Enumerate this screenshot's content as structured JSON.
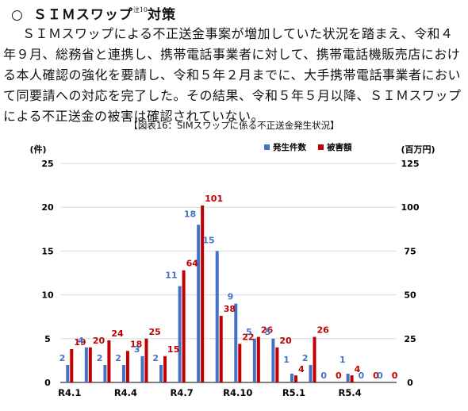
{
  "heading": {
    "marker": "○",
    "title": "ＳＩＭスワップ",
    "footnote": "注10",
    "suffix": "対策"
  },
  "body_text": "ＳＩＭスワップによる不正送金事案が増加していた状況を踏まえ、令和４年９月、総務省と連携し、携帯電話事業者に対して、携帯電話機販売店における本人確認の強化を要請し、令和５年２月までに、大手携帯電話事業者において同要請への対応を完了した。その結果、令和５年５月以降、ＳＩＭスワップによる不正送金の被害は確認されていない。",
  "figure_caption": "【図表16：SIMスワップに係る不正送金発生状況】",
  "colors": {
    "cases": "#4472c4",
    "damage": "#c00000",
    "axis": "#000000",
    "grid": "#d9d9d9"
  },
  "chart_data": {
    "type": "bar",
    "categories": [
      "R4.1",
      "R4.2",
      "R4.3",
      "R4.4",
      "R4.5",
      "R4.6",
      "R4.7",
      "R4.8",
      "R4.9",
      "R4.10",
      "R4.11",
      "R4.12",
      "R5.1",
      "R5.2",
      "R5.3",
      "R5.4",
      "R5.5",
      "R5.6"
    ],
    "category_tick_labels": [
      "R4.1",
      "",
      "",
      "R4.4",
      "",
      "",
      "R4.7",
      "",
      "",
      "R4.10",
      "",
      "",
      "R5.1",
      "",
      "",
      "R5.4",
      "",
      ""
    ],
    "series": [
      {
        "name": "発生件数",
        "axis": "left",
        "values": [
          2,
          4,
          2,
          2,
          3,
          2,
          11,
          18,
          15,
          9,
          5,
          5,
          1,
          2,
          0,
          1,
          0,
          0
        ]
      },
      {
        "name": "被害額",
        "axis": "right",
        "values": [
          19,
          20,
          24,
          18,
          25,
          15,
          64,
          101,
          38,
          22,
          26,
          20,
          4,
          26,
          0,
          4,
          0,
          0
        ]
      }
    ],
    "y_left": {
      "label": "(件)",
      "ylim": [
        0,
        25
      ],
      "ticks": [
        0,
        5,
        10,
        15,
        20,
        25
      ]
    },
    "y_right": {
      "label": "(百万円)",
      "ylim": [
        0,
        125
      ],
      "ticks": [
        0,
        25,
        50,
        75,
        100,
        125
      ]
    },
    "grid": true,
    "legend_position": "top-right"
  }
}
